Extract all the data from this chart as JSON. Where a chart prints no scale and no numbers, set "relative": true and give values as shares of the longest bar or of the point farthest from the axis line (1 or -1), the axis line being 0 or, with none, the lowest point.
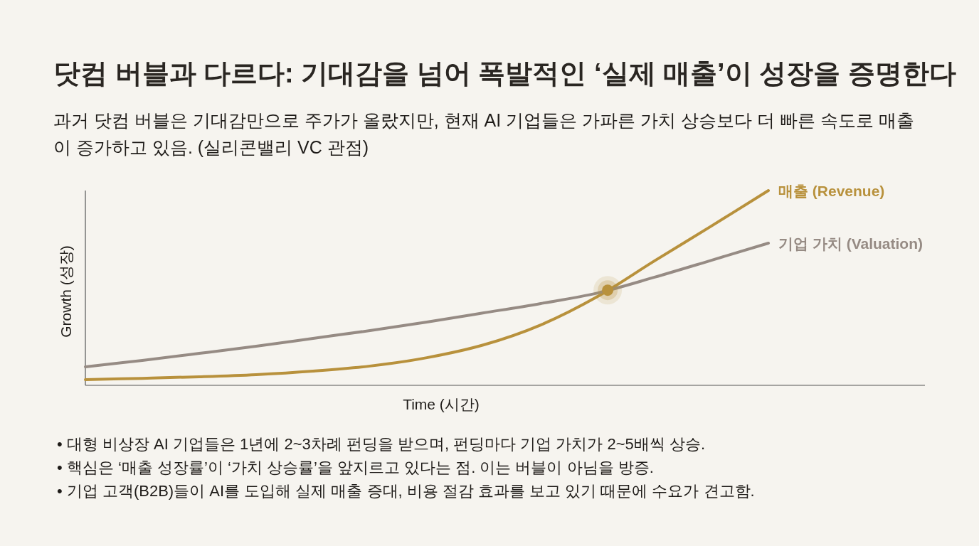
{
  "chart_data": {
    "type": "line",
    "title": "닷컴 버블과 다르다: 기대감을 넘어 폭발적인 ‘실제 매출’이 성장을 증명한다",
    "subtitle": "과거 닷컴 버블은 기대감만으로 주가가 올랐지만, 현재 AI 기업들은 가파른 가치 상승보다 더 빠른 속도로 매출이 증가하고 있음. (실리콘밸리 VC 관점)",
    "xlabel": "Time (시간)",
    "ylabel": "Growth (성장)",
    "relative": true,
    "grid": false,
    "categories": [
      null,
      null,
      null,
      null,
      null,
      null,
      null,
      null,
      null,
      null,
      null,
      null,
      null
    ],
    "series": [
      {
        "name": "매출 (Revenue)",
        "color": "#b8913c",
        "values": [
          0.029,
          0.036,
          0.044,
          0.055,
          0.073,
          0.099,
          0.142,
          0.208,
          0.31,
          0.456,
          0.639,
          0.818,
          1
        ]
      },
      {
        "name": "기업 가치 (Valuation)",
        "color": "#968b84",
        "values": [
          0.095,
          0.128,
          0.164,
          0.201,
          0.241,
          0.281,
          0.325,
          0.372,
          0.42,
          0.474,
          0.555,
          0.642,
          0.73
        ]
      }
    ],
    "annotations": [
      "• 대형 비상장 AI 기업들은 1년에 2~3차례 펀딩을 받으며, 펀딩마다 기업 가치가 2~5배씩 상승.",
      "• 핵심은 ‘매출 성장률’이 ‘가치 상승률’을 앞지르고 있다는 점. 이는 버블이 아님을 방증.",
      "• 기업 고객(B2B)들이 AI를 도입해 실제 매출 증대, 비용 절감 효과를 보고 있기 때문에 수요가 견고함."
    ]
  }
}
